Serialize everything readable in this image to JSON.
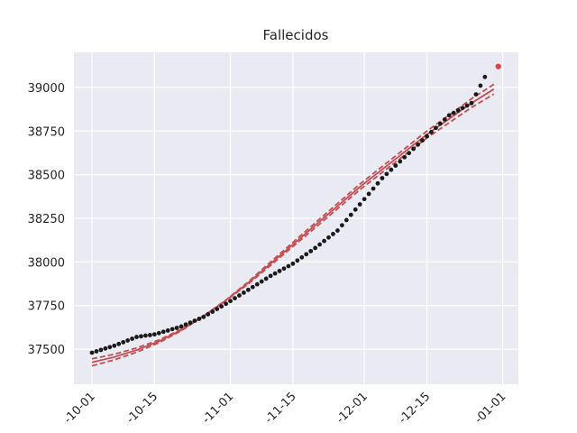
{
  "chart_data": {
    "type": "line",
    "title": "Fallecidos",
    "xlim": [
      -4.04,
      95.5
    ],
    "ylim": [
      37299,
      39201
    ],
    "xticks": [
      {
        "value": 0,
        "label": "-10-01"
      },
      {
        "value": 14,
        "label": "-10-15"
      },
      {
        "value": 31,
        "label": "-11-01"
      },
      {
        "value": 45,
        "label": "-11-15"
      },
      {
        "value": 61,
        "label": "-12-01"
      },
      {
        "value": 75,
        "label": "-12-15"
      },
      {
        "value": 92,
        "label": "-01-01"
      }
    ],
    "yticks": [
      37500,
      37750,
      38000,
      38250,
      38500,
      38750,
      39000
    ],
    "grid": true,
    "series": [
      {
        "color": "#c44e52",
        "style": "solid",
        "x": [
          0,
          5,
          10,
          15,
          20,
          25,
          30,
          35,
          40,
          45,
          50,
          55,
          60,
          65,
          70,
          75,
          80,
          85,
          90
        ],
        "values": [
          37425,
          37455,
          37495,
          37545,
          37610,
          37690,
          37780,
          37880,
          37990,
          38100,
          38210,
          38320,
          38430,
          38530,
          38630,
          38730,
          38820,
          38910,
          38990
        ]
      },
      {
        "color": "#c44e52",
        "style": "dashed",
        "x": [
          0,
          5,
          10,
          15,
          20,
          25,
          30,
          35,
          40,
          45,
          50,
          55,
          60,
          65,
          70,
          75,
          80,
          85,
          90
        ],
        "values": [
          37445,
          37471,
          37507,
          37553,
          37614,
          37691,
          37782,
          37886,
          38000,
          38112,
          38224,
          38335,
          38446,
          38547,
          38648,
          38750,
          38842,
          38935,
          39018
        ]
      },
      {
        "color": "#c44e52",
        "style": "dashed",
        "x": [
          0,
          5,
          10,
          15,
          20,
          25,
          30,
          35,
          40,
          45,
          50,
          55,
          60,
          65,
          70,
          75,
          80,
          85,
          90
        ],
        "values": [
          37405,
          37439,
          37483,
          37537,
          37606,
          37689,
          37778,
          37874,
          37980,
          38088,
          38196,
          38305,
          38414,
          38513,
          38612,
          38710,
          38798,
          38885,
          38962
        ]
      },
      {
        "color": "#1a1a1a",
        "style": "points",
        "x": [
          0,
          1,
          2,
          3,
          4,
          5,
          6,
          7,
          8,
          9,
          10,
          11,
          12,
          13,
          14,
          15,
          16,
          17,
          18,
          19,
          20,
          21,
          22,
          23,
          24,
          25,
          26,
          27,
          28,
          29,
          30,
          31,
          32,
          33,
          34,
          35,
          36,
          37,
          38,
          39,
          40,
          41,
          42,
          43,
          44,
          45,
          46,
          47,
          48,
          49,
          50,
          51,
          52,
          53,
          54,
          55,
          56,
          57,
          58,
          59,
          60,
          61,
          62,
          63,
          64,
          65,
          66,
          67,
          68,
          69,
          70,
          71,
          72,
          73,
          74,
          75,
          76,
          77,
          78,
          79,
          80,
          81,
          82,
          83,
          84,
          85,
          86,
          87,
          88
        ],
        "values": [
          37480,
          37488,
          37496,
          37504,
          37512,
          37520,
          37530,
          37540,
          37550,
          37560,
          37570,
          37574,
          37578,
          37581,
          37585,
          37592,
          37600,
          37607,
          37615,
          37622,
          37630,
          37641,
          37652,
          37663,
          37674,
          37685,
          37700,
          37715,
          37730,
          37745,
          37760,
          37776,
          37792,
          37808,
          37824,
          37840,
          37856,
          37872,
          37888,
          37904,
          37920,
          37934,
          37948,
          37962,
          37976,
          37990,
          38008,
          38026,
          38044,
          38062,
          38080,
          38100,
          38120,
          38140,
          38160,
          38180,
          38210,
          38240,
          38270,
          38300,
          38330,
          38360,
          38390,
          38420,
          38450,
          38480,
          38504,
          38528,
          38552,
          38576,
          38600,
          38624,
          38648,
          38672,
          38696,
          38720,
          38744,
          38768,
          38792,
          38816,
          38840,
          38854,
          38868,
          38882,
          38896,
          38910,
          38960,
          39010,
          39060
        ]
      },
      {
        "color": "#d9474f",
        "style": "points",
        "x": [
          91
        ],
        "values": [
          39120
        ]
      }
    ]
  }
}
